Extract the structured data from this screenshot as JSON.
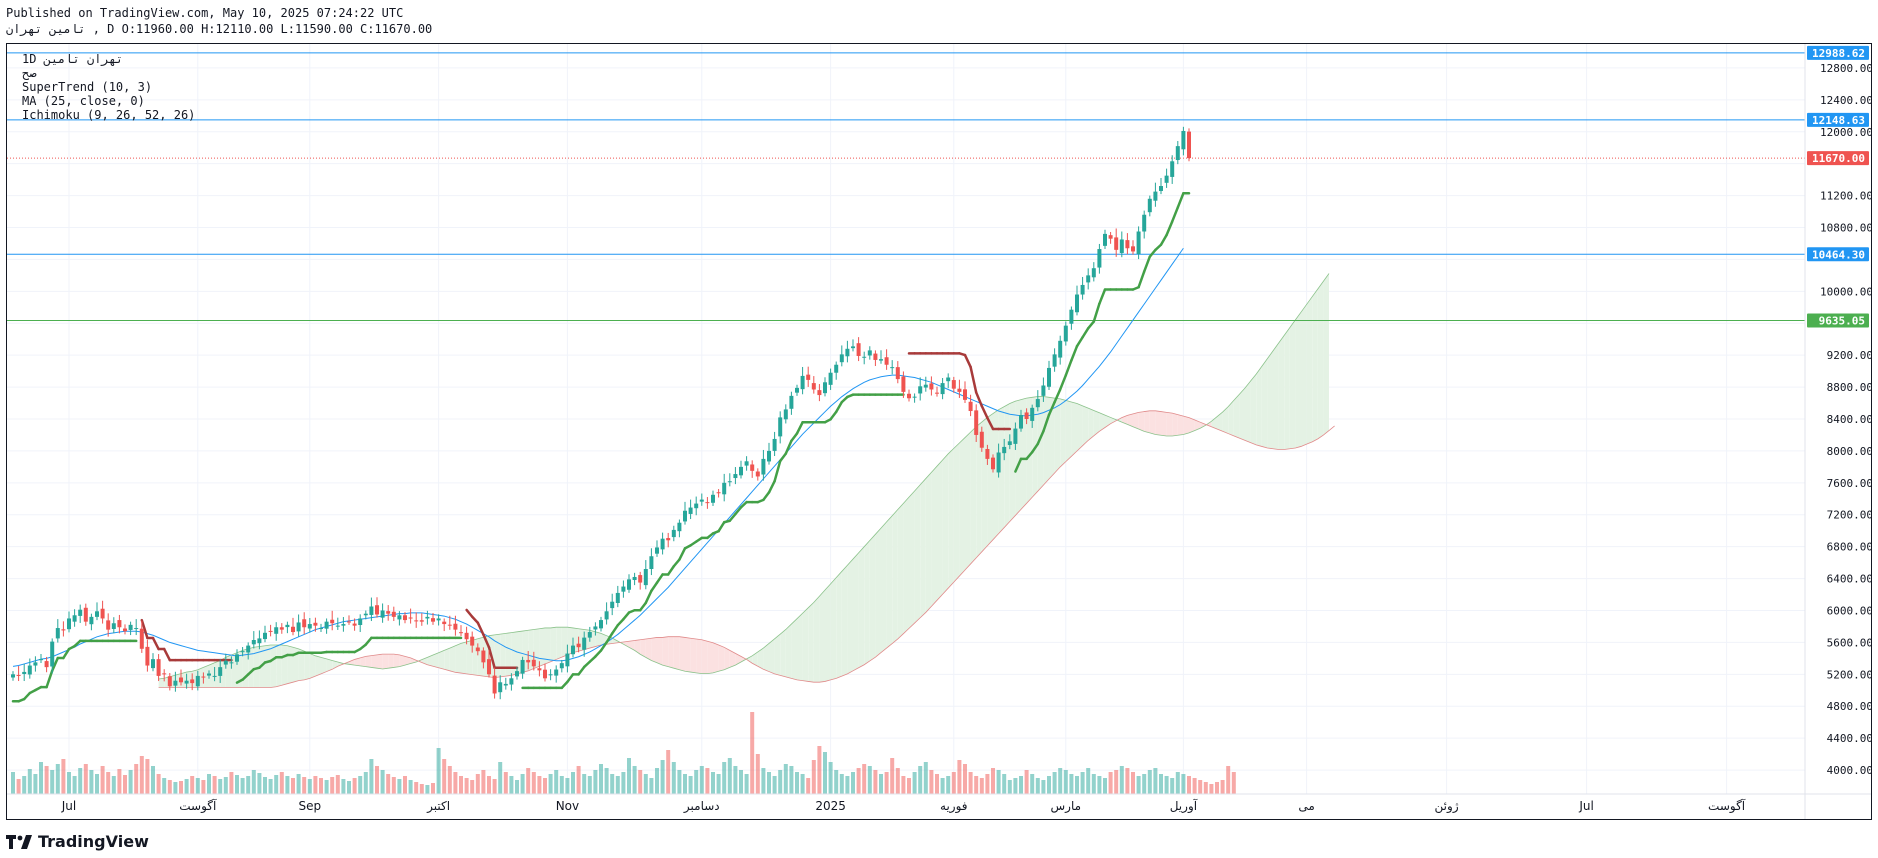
{
  "header": {
    "published": "Published on TradingView.com, May 10, 2025 07:24:22 UTC",
    "symbol_line": "ﺗﺎﻣﯿﻦ ﺗﻬﺮﺍﻥ , D O:11960.00 H:12110.00 L:11590.00 C:11670.00"
  },
  "legend": {
    "line1": "1D ﺗﻬﺮﺍﻥ ﺗﺎﻣﯿﻦ",
    "line2": "ﺻﺢ",
    "supertrend": "SuperTrend (10, 3)",
    "ma": "MA (25, close, 0)",
    "ichimoku": "Ichimoku (9, 26, 52, 26)"
  },
  "footer": {
    "brand": "TradingView"
  },
  "colors": {
    "up": "#26a69a",
    "down": "#ef5350",
    "ma": "#2196f3",
    "st_up": "#43a047",
    "st_down": "#a83a3a",
    "cloud_up": "#e4f2e4",
    "cloud_down": "#fbe1e1",
    "hline_blue": "#2196f3",
    "hline_green": "#4caf50",
    "last_price": "#ef5350"
  },
  "chart_data": {
    "type": "candlestick",
    "ylim": [
      3700,
      13100
    ],
    "y_ticks": [
      "12800.00",
      "12400.00",
      "12000.00",
      "11200.00",
      "10800.00",
      "10000.00",
      "9200.00",
      "8800.00",
      "8400.00",
      "8000.00",
      "7600.00",
      "7200.00",
      "6800.00",
      "6400.00",
      "6000.00",
      "5600.00",
      "5200.00",
      "4800.00",
      "4400.00",
      "4000.00"
    ],
    "x_ticks": [
      {
        "label": "Jul",
        "bar": 10
      },
      {
        "label": "آگوست",
        "bar": 33
      },
      {
        "label": "Sep",
        "bar": 53
      },
      {
        "label": "اکتبر",
        "bar": 76
      },
      {
        "label": "Nov",
        "bar": 99
      },
      {
        "label": "دسامبر",
        "bar": 123
      },
      {
        "label": "2025",
        "bar": 146
      },
      {
        "label": "فوریه",
        "bar": 168
      },
      {
        "label": "مارس",
        "bar": 188
      },
      {
        "label": "آوریل",
        "bar": 209
      },
      {
        "label": "می",
        "bar": 231
      },
      {
        "label": "ژوئن",
        "bar": 256
      },
      {
        "label": "Jul",
        "bar": 281
      },
      {
        "label": "آگوست",
        "bar": 306
      }
    ],
    "horizontal_lines": [
      {
        "price": 12988.62,
        "label": "12988.62",
        "color": "blue"
      },
      {
        "price": 12148.63,
        "label": "12148.63",
        "color": "blue"
      },
      {
        "price": 10464.3,
        "label": "10464.30",
        "color": "blue"
      },
      {
        "price": 9635.05,
        "label": "9635.05",
        "color": "green"
      }
    ],
    "last_price": {
      "price": 11670.0,
      "label": "11670.00"
    },
    "closes": [
      5200,
      5180,
      5230,
      5310,
      5350,
      5390,
      5290,
      5610,
      5780,
      5750,
      5900,
      5940,
      6010,
      5860,
      5920,
      5990,
      5900,
      5760,
      5840,
      5790,
      5740,
      5820,
      5780,
      5520,
      5310,
      5390,
      5180,
      5200,
      5050,
      5120,
      5100,
      5120,
      5090,
      5180,
      5160,
      5210,
      5180,
      5290,
      5370,
      5350,
      5450,
      5490,
      5560,
      5630,
      5650,
      5720,
      5740,
      5790,
      5760,
      5820,
      5730,
      5850,
      5790,
      5830,
      5810,
      5780,
      5860,
      5840,
      5810,
      5830,
      5860,
      5810,
      5900,
      5960,
      6050,
      5950,
      6000,
      5960,
      5920,
      5940,
      5880,
      5900,
      5870,
      5860,
      5920,
      5860,
      5900,
      5830,
      5810,
      5760,
      5720,
      5640,
      5560,
      5490,
      5350,
      5200,
      4960,
      5100,
      5080,
      5150,
      5240,
      5380,
      5350,
      5300,
      5250,
      5150,
      5200,
      5260,
      5340,
      5460,
      5560,
      5540,
      5660,
      5730,
      5800,
      5880,
      5990,
      6110,
      6220,
      6300,
      6390,
      6420,
      6350,
      6520,
      6680,
      6790,
      6900,
      6880,
      7010,
      7100,
      7250,
      7290,
      7340,
      7390,
      7350,
      7450,
      7480,
      7600,
      7620,
      7710,
      7800,
      7870,
      7750,
      7680,
      7900,
      8000,
      8150,
      8420,
      8520,
      8690,
      8790,
      8940,
      8890,
      8770,
      8700,
      8860,
      8980,
      9080,
      9210,
      9280,
      9310,
      9190,
      9180,
      9260,
      9140,
      9150,
      9080,
      9050,
      8900,
      8740,
      8660,
      8680,
      8810,
      8830,
      8770,
      8720,
      8850,
      8920,
      8780,
      8740,
      8640,
      8500,
      8200,
      8040,
      7900,
      7770,
      7980,
      8050,
      8120,
      8280,
      8450,
      8400,
      8540,
      8650,
      8820,
      9040,
      9210,
      9380,
      9570,
      9770,
      9960,
      10080,
      10200,
      10290,
      10530,
      10720,
      10660,
      10520,
      10650,
      10540,
      10500,
      10750,
      10960,
      11160,
      11250,
      11320,
      11450,
      11630,
      11820,
      12010,
      11670
    ],
    "ma_values": [
      5300,
      5310,
      5330,
      5350,
      5370,
      5390,
      5400,
      5420,
      5450,
      5480,
      5510,
      5540,
      5580,
      5610,
      5640,
      5670,
      5690,
      5710,
      5720,
      5730,
      5740,
      5740,
      5740,
      5730,
      5710,
      5690,
      5660,
      5630,
      5600,
      5580,
      5560,
      5540,
      5520,
      5500,
      5490,
      5480,
      5470,
      5460,
      5450,
      5440,
      5430,
      5440,
      5450,
      5460,
      5480,
      5500,
      5520,
      5550,
      5580,
      5610,
      5640,
      5670,
      5700,
      5730,
      5760,
      5780,
      5800,
      5820,
      5840,
      5860,
      5870,
      5880,
      5890,
      5900,
      5910,
      5920,
      5930,
      5940,
      5950,
      5960,
      5960,
      5970,
      5970,
      5970,
      5960,
      5950,
      5940,
      5930,
      5910,
      5890,
      5860,
      5830,
      5790,
      5750,
      5710,
      5670,
      5620,
      5580,
      5540,
      5510,
      5480,
      5460,
      5440,
      5420,
      5400,
      5390,
      5380,
      5370,
      5370,
      5380,
      5400,
      5420,
      5450,
      5480,
      5520,
      5560,
      5600,
      5650,
      5700,
      5760,
      5820,
      5880,
      5940,
      6010,
      6080,
      6150,
      6220,
      6290,
      6370,
      6450,
      6530,
      6610,
      6690,
      6770,
      6850,
      6930,
      7010,
      7090,
      7170,
      7250,
      7330,
      7410,
      7490,
      7570,
      7650,
      7730,
      7810,
      7890,
      7970,
      8050,
      8130,
      8210,
      8280,
      8350,
      8420,
      8490,
      8560,
      8620,
      8680,
      8730,
      8780,
      8820,
      8860,
      8890,
      8910,
      8930,
      8940,
      8950,
      8950,
      8940,
      8930,
      8920,
      8900,
      8880,
      8860,
      8830,
      8800,
      8770,
      8740,
      8710,
      8680,
      8650,
      8620,
      8590,
      8560,
      8530,
      8500,
      8480,
      8460,
      8450,
      8440,
      8440,
      8450,
      8460,
      8480,
      8510,
      8540,
      8580,
      8630,
      8690,
      8750,
      8820,
      8900,
      8980,
      9060,
      9150,
      9240,
      9340,
      9440,
      9540,
      9640,
      9740,
      9840,
      9940,
      10040,
      10140,
      10240,
      10340,
      10440,
      10540
    ],
    "volumes": [
      22,
      15,
      18,
      25,
      20,
      32,
      28,
      24,
      30,
      35,
      22,
      18,
      26,
      30,
      24,
      20,
      28,
      22,
      18,
      25,
      19,
      24,
      30,
      38,
      35,
      28,
      20,
      16,
      14,
      12,
      13,
      15,
      18,
      16,
      14,
      20,
      18,
      15,
      17,
      22,
      19,
      16,
      18,
      24,
      21,
      17,
      15,
      19,
      22,
      18,
      16,
      20,
      17,
      15,
      18,
      16,
      14,
      17,
      19,
      15,
      13,
      16,
      18,
      22,
      35,
      28,
      24,
      20,
      17,
      15,
      18,
      14,
      12,
      10,
      9,
      11,
      46,
      35,
      28,
      22,
      18,
      16,
      14,
      20,
      24,
      18,
      15,
      32,
      22,
      18,
      14,
      20,
      26,
      22,
      18,
      16,
      20,
      24,
      18,
      16,
      22,
      28,
      20,
      18,
      24,
      30,
      26,
      20,
      18,
      22,
      36,
      28,
      24,
      20,
      16,
      26,
      34,
      44,
      32,
      24,
      20,
      18,
      24,
      28,
      26,
      22,
      20,
      32,
      36,
      28,
      24,
      20,
      82,
      40,
      26,
      22,
      18,
      24,
      30,
      28,
      22,
      20,
      16,
      34,
      48,
      42,
      32,
      24,
      20,
      18,
      22,
      26,
      30,
      28,
      24,
      20,
      22,
      36,
      26,
      18,
      16,
      22,
      28,
      32,
      24,
      20,
      16,
      18,
      22,
      34,
      30,
      22,
      18,
      16,
      20,
      26,
      24,
      20,
      14,
      16,
      18,
      24,
      20,
      16,
      14,
      18,
      22,
      26,
      24,
      20,
      18,
      22,
      26,
      20,
      18,
      16,
      22,
      24,
      28,
      26,
      22,
      18,
      20,
      24,
      26,
      20,
      18,
      16,
      22,
      20,
      18,
      16,
      14,
      12,
      10,
      12,
      14,
      28,
      22
    ],
    "supertrend": {
      "description": "trailing stop line"
    }
  }
}
